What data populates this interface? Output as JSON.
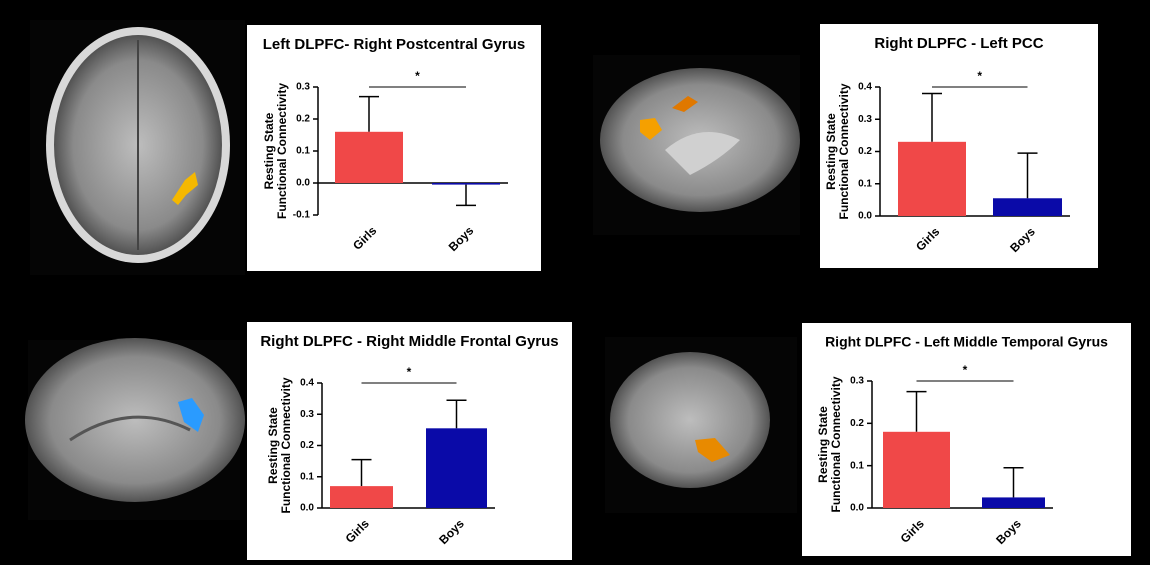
{
  "chart_data": [
    {
      "type": "bar",
      "title": "Left DLPFC- Right Postcentral Gyrus",
      "ylabel": [
        "Resting State",
        "Functional Connectivity"
      ],
      "categories": [
        "Girls",
        "Boys"
      ],
      "values": [
        0.16,
        -0.005
      ],
      "errors": [
        0.11,
        0.065
      ],
      "colors": [
        "#f04848",
        "#0a0aa8"
      ],
      "ylim": [
        -0.1,
        0.3
      ],
      "yticks": [
        -0.1,
        {
          "value": 0,
          "label": "0.0"
        },
        0.1,
        0.2,
        0.3
      ],
      "annotation": "*"
    },
    {
      "type": "bar",
      "title": "Right DLPFC - Left PCC",
      "ylabel": [
        "Resting State",
        "Functional Connectivity"
      ],
      "categories": [
        "Girls",
        "Boys"
      ],
      "values": [
        0.23,
        0.055
      ],
      "errors": [
        0.15,
        0.14
      ],
      "colors": [
        "#f04848",
        "#0a0aa8"
      ],
      "ylim": [
        0,
        0.4
      ],
      "yticks": [
        {
          "value": 0,
          "label": "0.0"
        },
        0.1,
        0.2,
        0.3,
        0.4
      ],
      "annotation": "*"
    },
    {
      "type": "bar",
      "title": "Right DLPFC - Right Middle Frontal Gyrus",
      "ylabel": [
        "Resting State",
        "Functional Connectivity"
      ],
      "categories": [
        "Girls",
        "Boys"
      ],
      "values": [
        0.07,
        0.255
      ],
      "errors": [
        0.085,
        0.09
      ],
      "colors": [
        "#f04848",
        "#0a0aa8"
      ],
      "ylim": [
        0,
        0.4
      ],
      "yticks": [
        {
          "value": 0,
          "label": "0.0"
        },
        0.1,
        0.2,
        0.3,
        0.4
      ],
      "annotation": "*"
    },
    {
      "type": "bar",
      "title": "Right DLPFC - Left Middle  Temporal Gyrus",
      "ylabel": [
        "Resting State",
        "Functional Connectivity"
      ],
      "categories": [
        "Girls",
        "Boys"
      ],
      "values": [
        0.18,
        0.025
      ],
      "errors": [
        0.095,
        0.07
      ],
      "colors": [
        "#f04848",
        "#0a0aa8"
      ],
      "ylim": [
        0,
        0.3
      ],
      "yticks": [
        {
          "value": 0,
          "label": "0.0"
        },
        0.1,
        0.2,
        0.3
      ],
      "annotation": "*"
    }
  ]
}
